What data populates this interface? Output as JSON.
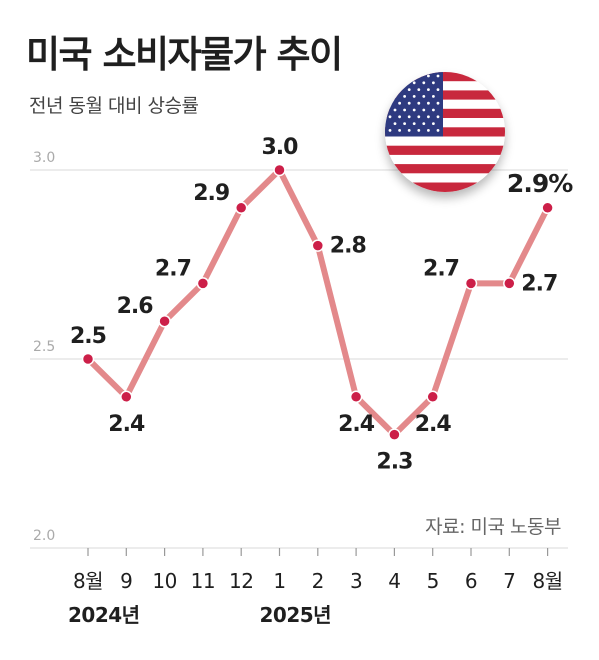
{
  "header": {
    "title": "미국 소비자물가 추이",
    "subtitle": "전년 동월 대비 상승률"
  },
  "source": "자료: 미국 노동부",
  "flag_icon": "us-flag-icon",
  "colors": {
    "line": "#e3898b",
    "marker": "#cc1f48",
    "grid": "#d9d9d9",
    "text": "#1f1f1f",
    "flag_red": "#c8283d",
    "flag_blue": "#2e3a80"
  },
  "chart_data": {
    "type": "line",
    "title": "미국 소비자물가 추이",
    "subtitle": "전년 동월 대비 상승률",
    "categories": [
      "8월",
      "9",
      "10",
      "11",
      "12",
      "1",
      "2",
      "3",
      "4",
      "5",
      "6",
      "7",
      "8월"
    ],
    "year_labels": [
      {
        "label": "2024년",
        "index": 0
      },
      {
        "label": "2025년",
        "index": 5
      }
    ],
    "series": [
      {
        "values": [
          2.5,
          2.4,
          2.6,
          2.7,
          2.9,
          3.0,
          2.8,
          2.4,
          2.3,
          2.4,
          2.7,
          2.7,
          2.9
        ],
        "labels": [
          "2.5",
          "2.4",
          "2.6",
          "2.7",
          "2.9",
          "3.0",
          "2.8",
          "2.4",
          "2.3",
          "2.4",
          "2.7",
          "2.7",
          "2.9%"
        ]
      }
    ],
    "yticks": [
      "3.0",
      "2.5",
      "2.0"
    ],
    "ylim": [
      2.0,
      3.0
    ],
    "xlabel": "",
    "ylabel": "",
    "grid": true,
    "legend": "none"
  }
}
